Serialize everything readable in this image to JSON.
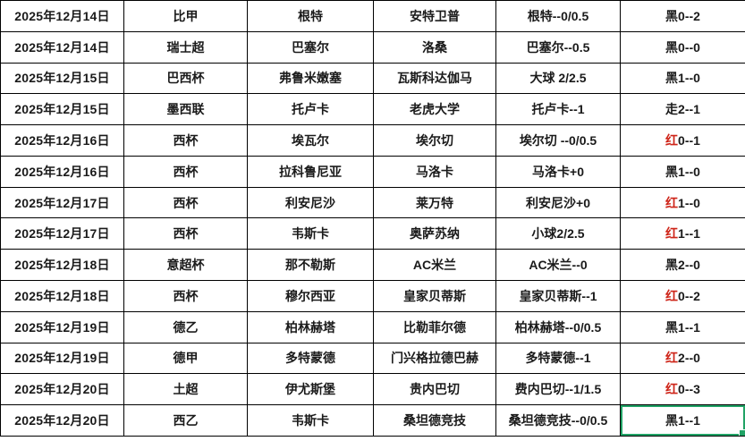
{
  "app": {
    "view": "spreadsheet-grid"
  },
  "colors": {
    "grid_line": "#000000",
    "date_text": "#44546A",
    "black": "#1A1A1A",
    "red": "#CE2418",
    "blue": "#3333CC",
    "selection_border": "#21A366",
    "error_triangle": "#1E8E1E",
    "background": "#FFFFFF"
  },
  "table": {
    "rows": [
      {
        "date": "2025年12月14日",
        "league": "比甲",
        "home": "根特",
        "away": "安特卫普",
        "handicap": {
          "text": "根特--0/0.5",
          "color": "red"
        },
        "result": {
          "prefix": "黑",
          "prefix_color": "black",
          "score": "0--2"
        },
        "triangles": []
      },
      {
        "date": "2025年12月14日",
        "league": "瑞士超",
        "home": "巴塞尔",
        "away": "洛桑",
        "handicap": {
          "text": "巴塞尔--0.5",
          "color": "black"
        },
        "result": {
          "prefix": "黑",
          "prefix_color": "black",
          "score": "0--0"
        },
        "triangles": []
      },
      {
        "date": "2025年12月15日",
        "league": "巴西杯",
        "home": "弗鲁米嫩塞",
        "away": "瓦斯科达伽马",
        "handicap": {
          "text": "大球  2/2.5",
          "color": "red"
        },
        "result": {
          "prefix": "黑",
          "prefix_color": "black",
          "score": "1--0"
        },
        "triangles": [
          "league"
        ]
      },
      {
        "date": "2025年12月15日",
        "league": "墨西联",
        "home": "托卢卡",
        "away": "老虎大学",
        "handicap": {
          "text": "托卢卡--1",
          "color": "red"
        },
        "result": {
          "prefix": "走",
          "prefix_color": "black",
          "score": "2--1"
        },
        "triangles": []
      },
      {
        "date": "2025年12月16日",
        "league": "西杯",
        "home": "埃瓦尔",
        "away": "埃尔切",
        "handicap": {
          "text": "埃尔切 --0/0.5",
          "color": "red"
        },
        "result": {
          "prefix": "红",
          "prefix_color": "red",
          "score": "0--1"
        },
        "triangles": [
          "handicap"
        ]
      },
      {
        "date": "2025年12月16日",
        "league": "西杯",
        "home": "拉科鲁尼亚",
        "away": "马洛卡",
        "handicap": {
          "text": "马洛卡+0",
          "color": "red"
        },
        "result": {
          "prefix": "黑",
          "prefix_color": "black",
          "score": "1--0"
        },
        "triangles": []
      },
      {
        "date": "2025年12月17日",
        "league": "西杯",
        "home": "利安尼沙",
        "away": "莱万特",
        "handicap": {
          "text": "利安尼沙+0",
          "color": "red"
        },
        "result": {
          "prefix": "红",
          "prefix_color": "red",
          "score": "1--0"
        },
        "triangles": []
      },
      {
        "date": "2025年12月17日",
        "league": "西杯",
        "home": "韦斯卡",
        "away": "奥萨苏纳",
        "handicap": {
          "text": "小球2/2.5",
          "color": "blue"
        },
        "result": {
          "prefix": "红",
          "prefix_color": "red",
          "score": "1--1"
        },
        "triangles": []
      },
      {
        "date": "2025年12月18日",
        "league": "意超杯",
        "home": "那不勒斯",
        "away": "AC米兰",
        "handicap": {
          "text": "AC米兰--0",
          "color": "black"
        },
        "result": {
          "prefix": "黑",
          "prefix_color": "black",
          "score": "2--0"
        },
        "triangles": [
          "league"
        ]
      },
      {
        "date": "2025年12月18日",
        "league": "西杯",
        "home": "穆尔西亚",
        "away": "皇家贝蒂斯",
        "handicap": {
          "text": "皇家贝蒂斯--1",
          "color": "red"
        },
        "result": {
          "prefix": "红",
          "prefix_color": "red",
          "score": "0--2"
        },
        "triangles": []
      },
      {
        "date": "2025年12月19日",
        "league": "德乙",
        "home": "柏林赫塔",
        "away": "比勒菲尔德",
        "handicap": {
          "text": "柏林赫塔--0/0.5",
          "color": "red"
        },
        "result": {
          "prefix": "黑",
          "prefix_color": "black",
          "score": "1--1"
        },
        "triangles": []
      },
      {
        "date": "2025年12月19日",
        "league": "德甲",
        "home": "多特蒙德",
        "away": "门兴格拉德巴赫",
        "handicap": {
          "text": "多特蒙德--1",
          "color": "red"
        },
        "result": {
          "prefix": "红",
          "prefix_color": "red",
          "score": "2--0"
        },
        "triangles": []
      },
      {
        "date": "2025年12月20日",
        "league": "土超",
        "home": "伊尤斯堡",
        "away": "贵内巴切",
        "handicap": {
          "text": "费内巴切--1/1.5",
          "color": "red"
        },
        "result": {
          "prefix": "红",
          "prefix_color": "red",
          "score": "0--3"
        },
        "triangles": []
      },
      {
        "date": "2025年12月20日",
        "league": "西乙",
        "home": "韦斯卡",
        "away": "桑坦德竞技",
        "handicap": {
          "text": "桑坦德竞技--0/0.5",
          "color": "red"
        },
        "result": {
          "prefix": "黑",
          "prefix_color": "black",
          "score": "1--1"
        },
        "triangles": [
          "league",
          "home"
        ],
        "selected": "result"
      }
    ]
  }
}
